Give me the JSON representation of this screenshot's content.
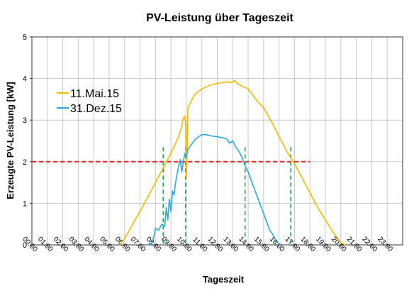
{
  "chart_data": {
    "type": "line",
    "title": "PV-Leistung über Tageszeit",
    "xlabel": "Tageszeit",
    "ylabel": "Erzeugte PV-Leistung [kW]",
    "xlim": [
      0,
      24
    ],
    "ylim": [
      0,
      5
    ],
    "y_ticks": [
      0,
      1,
      2,
      3,
      4,
      5
    ],
    "x_tick_labels": [
      "00:00",
      "01:00",
      "02:00",
      "03:00",
      "04:00",
      "05:00",
      "06:00",
      "07:00",
      "08:00",
      "09:00",
      "10:00",
      "11:00",
      "12:00",
      "13:00",
      "14:00",
      "15:00",
      "16:00",
      "17:00",
      "18:00",
      "19:00",
      "20:00",
      "21:00",
      "22:00",
      "23:00"
    ],
    "grid": true,
    "legend_position": "top-left",
    "series": [
      {
        "name": "11.Mai.15",
        "color": "#f5b800",
        "x": [
          5.7,
          6.0,
          6.3,
          6.6,
          7.0,
          7.5,
          8.0,
          8.5,
          9.0,
          9.5,
          9.7,
          9.8,
          9.9,
          9.95,
          10.0,
          10.05,
          10.1,
          10.3,
          10.5,
          10.8,
          11.0,
          11.3,
          11.6,
          12.0,
          12.3,
          12.6,
          12.9,
          13.1,
          13.4,
          13.7,
          14.0,
          14.3,
          14.6,
          15.0,
          15.3,
          15.6,
          16.0,
          16.5,
          17.0,
          17.5,
          18.0,
          18.5,
          19.0,
          19.5,
          20.0,
          20.3
        ],
        "values": [
          0.0,
          0.15,
          0.35,
          0.55,
          0.8,
          1.15,
          1.5,
          1.85,
          2.2,
          2.6,
          2.85,
          3.05,
          3.1,
          2.9,
          1.6,
          2.3,
          3.3,
          3.45,
          3.6,
          3.7,
          3.75,
          3.8,
          3.85,
          3.88,
          3.9,
          3.92,
          3.9,
          3.95,
          3.85,
          3.8,
          3.75,
          3.6,
          3.45,
          3.3,
          3.1,
          2.9,
          2.6,
          2.25,
          1.95,
          1.6,
          1.25,
          0.9,
          0.6,
          0.3,
          0.05,
          0.0
        ]
      },
      {
        "name": "31.Dez.15",
        "color": "#29a9e0",
        "x": [
          7.5,
          7.8,
          8.0,
          8.2,
          8.4,
          8.6,
          8.7,
          8.8,
          8.9,
          9.0,
          9.1,
          9.2,
          9.3,
          9.4,
          9.5,
          9.6,
          9.7,
          9.8,
          9.9,
          10.0,
          10.1,
          10.2,
          10.4,
          10.6,
          10.8,
          11.0,
          11.3,
          11.6,
          12.0,
          12.3,
          12.6,
          12.8,
          13.0,
          13.2,
          13.4,
          13.6,
          13.8,
          14.0,
          14.2,
          14.4,
          14.6,
          14.8,
          15.0,
          15.2,
          15.4,
          15.6,
          15.8,
          16.0,
          16.1
        ],
        "values": [
          0.0,
          0.05,
          0.4,
          0.35,
          0.5,
          0.45,
          0.9,
          0.6,
          1.1,
          0.8,
          1.3,
          1.2,
          1.5,
          1.7,
          1.9,
          2.05,
          1.75,
          2.0,
          2.2,
          2.1,
          2.3,
          2.35,
          2.45,
          2.55,
          2.6,
          2.65,
          2.65,
          2.62,
          2.6,
          2.58,
          2.55,
          2.45,
          2.5,
          2.35,
          2.25,
          2.1,
          1.9,
          1.75,
          1.55,
          1.35,
          1.15,
          0.95,
          0.75,
          0.55,
          0.35,
          0.25,
          0.1,
          0.02,
          0.0
        ]
      }
    ],
    "threshold_line": {
      "y": 2.0,
      "color": "#ee2222",
      "x_start": 0.0,
      "x_end": 18.0
    },
    "vertical_markers": {
      "color": "#22aa55",
      "x": [
        8.5,
        9.95,
        13.8,
        16.75
      ]
    }
  }
}
